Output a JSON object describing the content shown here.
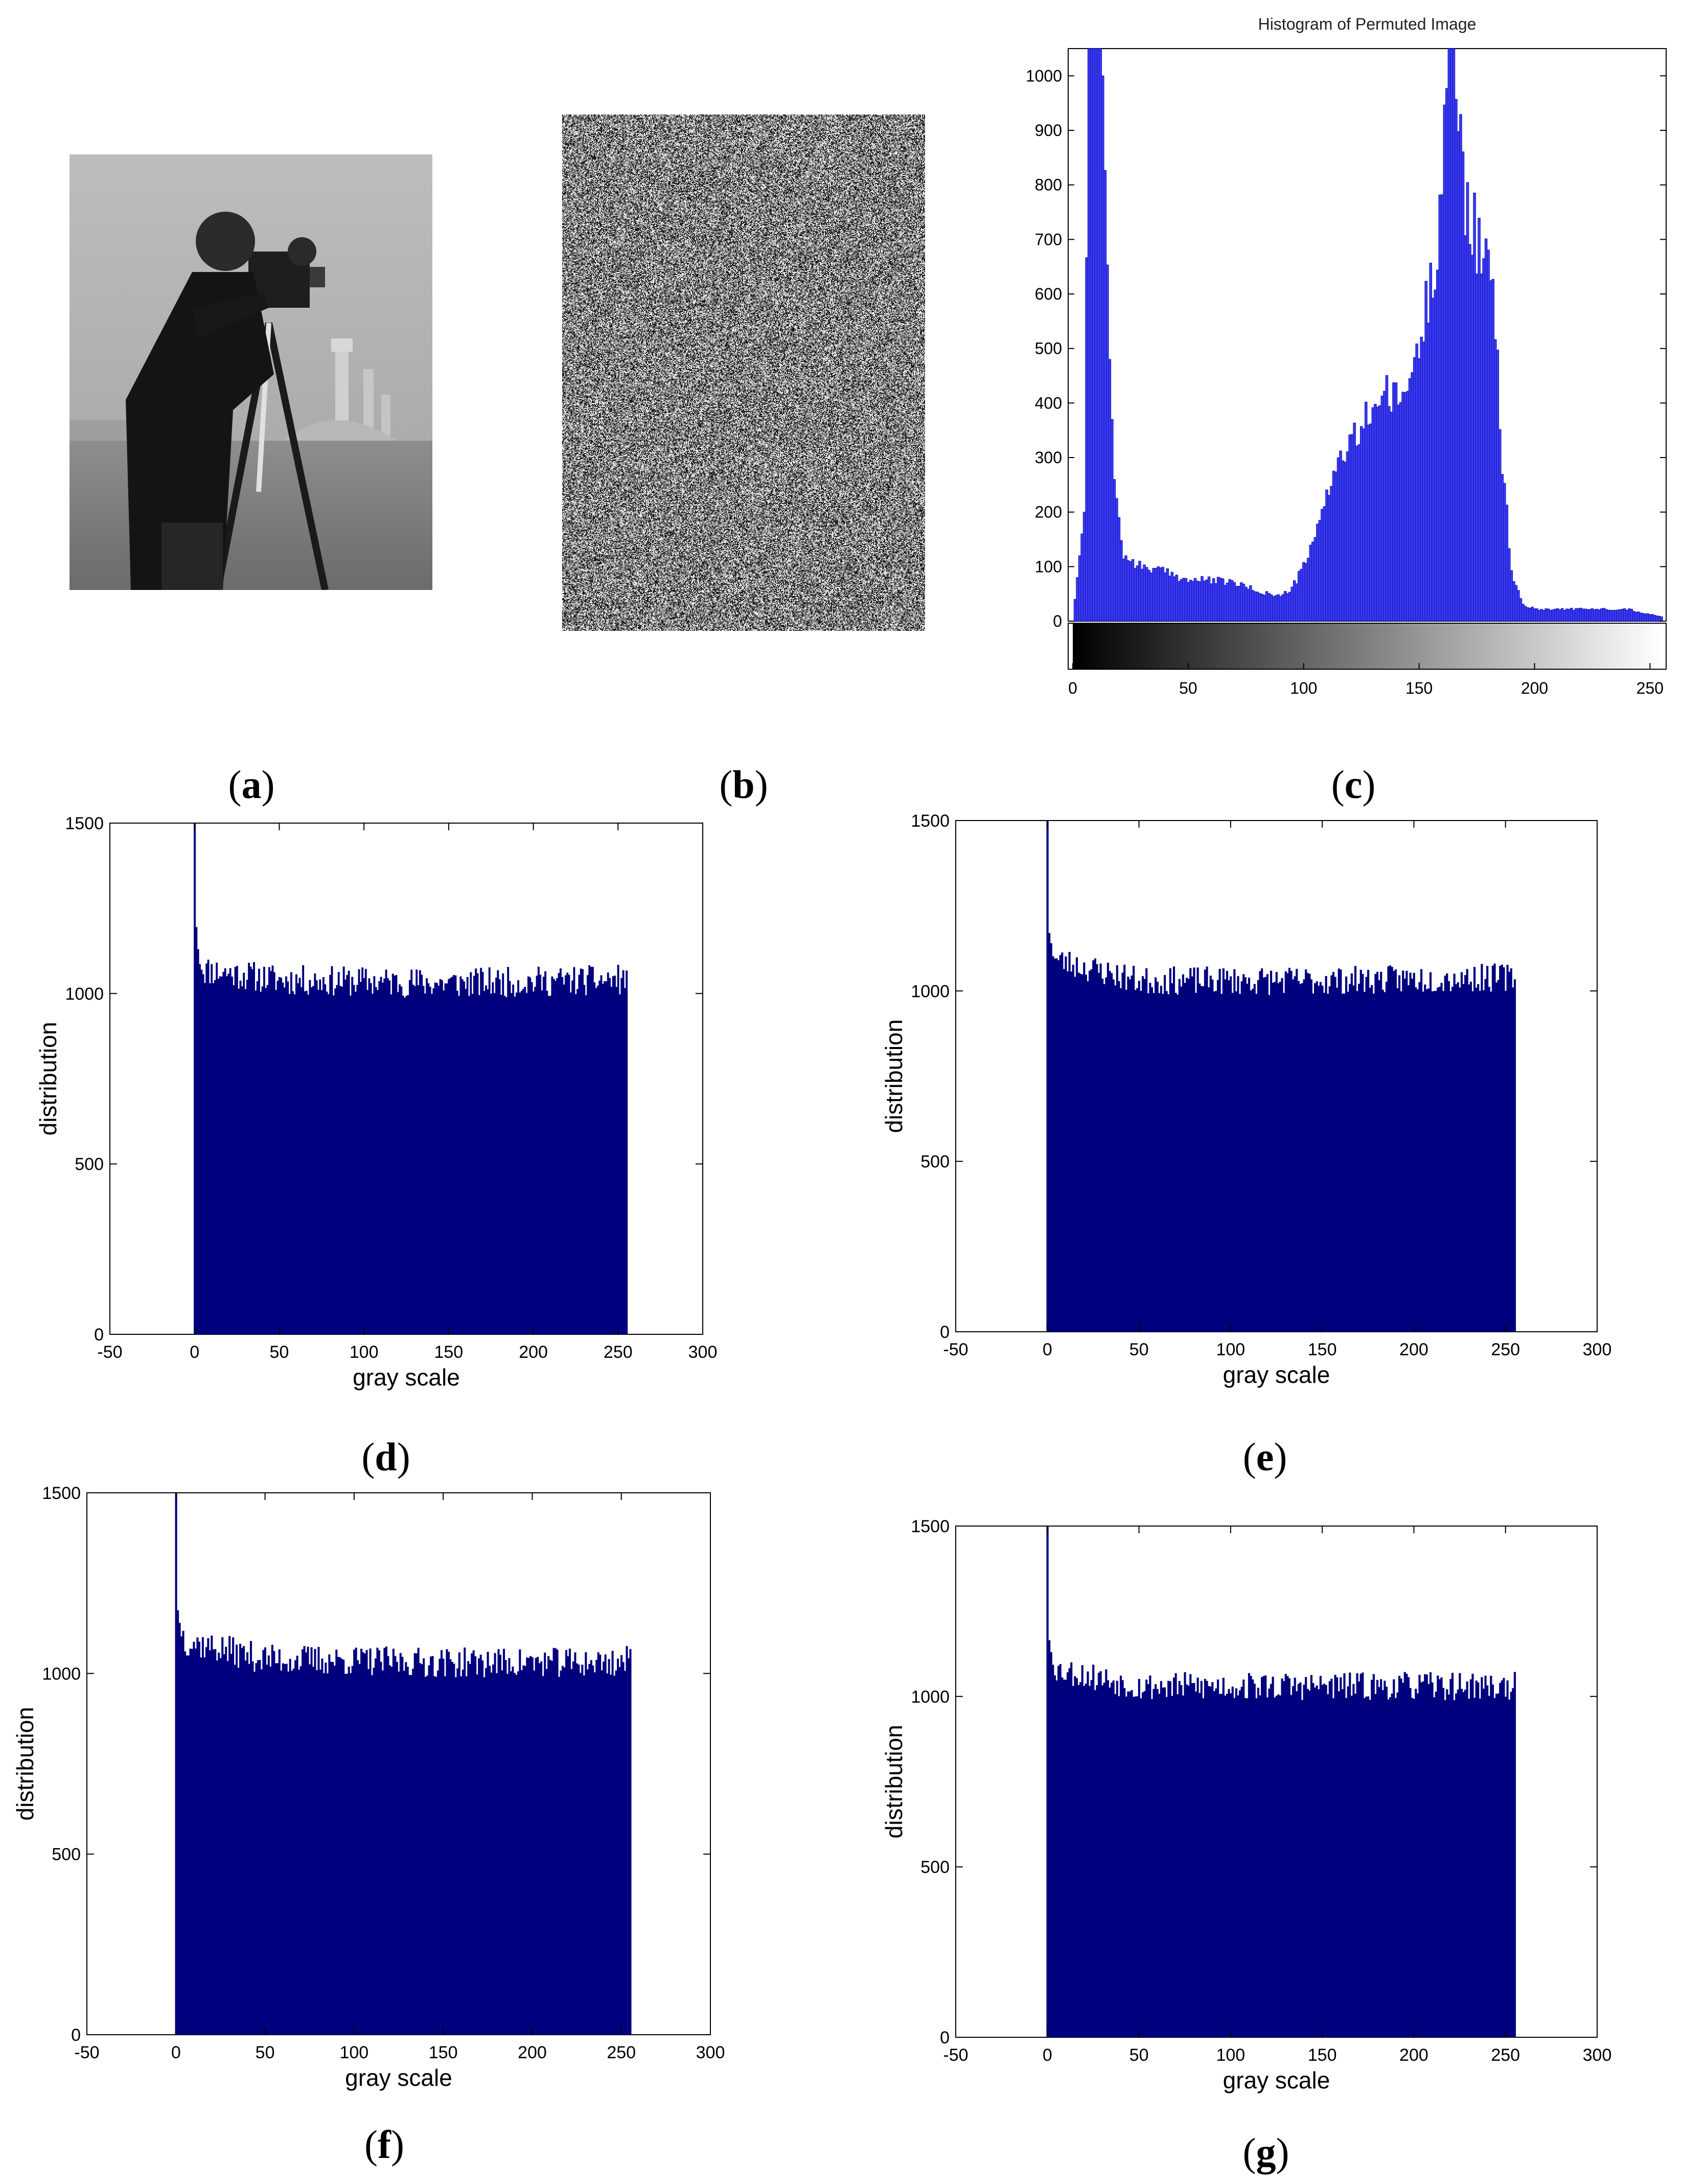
{
  "captions": [
    "a",
    "b",
    "c",
    "d",
    "e",
    "f",
    "g"
  ],
  "chart_data": [
    {
      "panel": "a",
      "type": "image",
      "content": "grayscale cameraman photograph"
    },
    {
      "panel": "b",
      "type": "image",
      "content": "noise-like permuted image"
    },
    {
      "panel": "c",
      "type": "bar",
      "title": "Histogram of Permuted Image",
      "xlabel": "",
      "ylabel": "",
      "xlim": [
        0,
        255
      ],
      "ylim": [
        0,
        1050
      ],
      "xticks": [
        0,
        50,
        100,
        150,
        200,
        250
      ],
      "yticks": [
        0,
        100,
        200,
        300,
        400,
        500,
        600,
        700,
        800,
        900,
        1000
      ],
      "grayscale_colorbar": true,
      "bar_color": "#3b3bf5",
      "profile": [
        [
          0,
          0
        ],
        [
          5,
          200
        ],
        [
          8,
          1600
        ],
        [
          13,
          1000
        ],
        [
          16,
          480
        ],
        [
          18,
          260
        ],
        [
          22,
          120
        ],
        [
          30,
          100
        ],
        [
          40,
          90
        ],
        [
          50,
          75
        ],
        [
          60,
          75
        ],
        [
          70,
          70
        ],
        [
          80,
          55
        ],
        [
          90,
          45
        ],
        [
          95,
          60
        ],
        [
          100,
          100
        ],
        [
          105,
          150
        ],
        [
          110,
          240
        ],
        [
          115,
          290
        ],
        [
          120,
          320
        ],
        [
          125,
          350
        ],
        [
          130,
          400
        ],
        [
          135,
          415
        ],
        [
          140,
          400
        ],
        [
          145,
          430
        ],
        [
          150,
          500
        ],
        [
          155,
          620
        ],
        [
          158,
          700
        ],
        [
          160,
          860
        ],
        [
          163,
          1060
        ],
        [
          166,
          1010
        ],
        [
          170,
          780
        ],
        [
          175,
          700
        ],
        [
          180,
          640
        ],
        [
          183,
          560
        ],
        [
          185,
          350
        ],
        [
          190,
          90
        ],
        [
          195,
          30
        ],
        [
          200,
          22
        ],
        [
          220,
          22
        ],
        [
          240,
          22
        ],
        [
          255,
          8
        ]
      ]
    },
    {
      "panel": "d",
      "type": "bar",
      "xlabel": "gray scale",
      "ylabel": "distribution",
      "xlim": [
        -50,
        300
      ],
      "ylim": [
        0,
        1500
      ],
      "xticks": [
        -50,
        0,
        50,
        100,
        150,
        200,
        250,
        300
      ],
      "yticks": [
        0,
        500,
        1000,
        1500
      ],
      "bar_color": "#00007f",
      "profile": [
        [
          0,
          1500
        ],
        [
          1,
          1195
        ],
        [
          2,
          1130
        ],
        [
          5,
          1070
        ],
        [
          50,
          1040
        ],
        [
          150,
          1030
        ],
        [
          250,
          1040
        ],
        [
          255,
          1040
        ]
      ],
      "noise": 45,
      "seed": 11
    },
    {
      "panel": "e",
      "type": "bar",
      "xlabel": "gray scale",
      "ylabel": "distribution",
      "xlim": [
        -50,
        300
      ],
      "ylim": [
        0,
        1500
      ],
      "xticks": [
        -50,
        0,
        50,
        100,
        150,
        200,
        250,
        300
      ],
      "yticks": [
        0,
        500,
        1000,
        1500
      ],
      "bar_color": "#00007f",
      "profile": [
        [
          0,
          1500
        ],
        [
          1,
          1170
        ],
        [
          2,
          1140
        ],
        [
          5,
          1090
        ],
        [
          50,
          1030
        ],
        [
          150,
          1030
        ],
        [
          250,
          1040
        ],
        [
          255,
          1040
        ]
      ],
      "noise": 42,
      "seed": 23
    },
    {
      "panel": "f",
      "type": "bar",
      "xlabel": "gray scale",
      "ylabel": "distribution",
      "xlim": [
        -50,
        300
      ],
      "ylim": [
        0,
        1500
      ],
      "xticks": [
        -50,
        0,
        50,
        100,
        150,
        200,
        250,
        300
      ],
      "yticks": [
        0,
        500,
        1000,
        1500
      ],
      "bar_color": "#00007f",
      "profile": [
        [
          0,
          1500
        ],
        [
          1,
          1175
        ],
        [
          2,
          1140
        ],
        [
          5,
          1090
        ],
        [
          50,
          1040
        ],
        [
          150,
          1030
        ],
        [
          250,
          1030
        ],
        [
          255,
          1040
        ]
      ],
      "noise": 42,
      "seed": 37
    },
    {
      "panel": "g",
      "type": "bar",
      "xlabel": "gray scale",
      "ylabel": "distribution",
      "xlim": [
        -50,
        300
      ],
      "ylim": [
        0,
        1500
      ],
      "xticks": [
        -50,
        0,
        50,
        100,
        150,
        200,
        250,
        300
      ],
      "yticks": [
        0,
        500,
        1000,
        1500
      ],
      "bar_color": "#00007f",
      "profile": [
        [
          0,
          1500
        ],
        [
          1,
          1165
        ],
        [
          2,
          1130
        ],
        [
          5,
          1080
        ],
        [
          50,
          1030
        ],
        [
          150,
          1030
        ],
        [
          250,
          1030
        ],
        [
          255,
          1030
        ]
      ],
      "noise": 42,
      "seed": 53
    }
  ]
}
